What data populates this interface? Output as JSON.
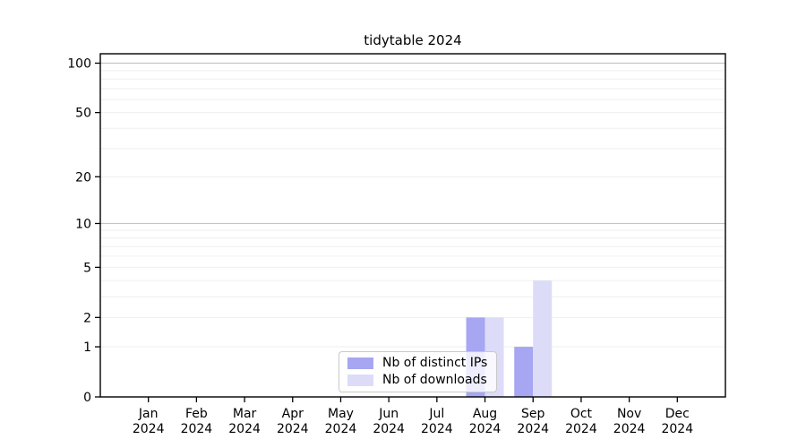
{
  "title": "tidytable 2024",
  "chart_data": {
    "type": "bar",
    "title": "tidytable 2024",
    "categories": [
      "Jan",
      "Feb",
      "Mar",
      "Apr",
      "May",
      "Jun",
      "Jul",
      "Aug",
      "Sep",
      "Oct",
      "Nov",
      "Dec"
    ],
    "year_label": "2024",
    "series": [
      {
        "name": "Nb of distinct IPs",
        "color": "#a6a6f2",
        "values": [
          0,
          0,
          0,
          0,
          0,
          0,
          0,
          2,
          1,
          0,
          0,
          0
        ]
      },
      {
        "name": "Nb of downloads",
        "color": "#dcdcf9",
        "values": [
          0,
          0,
          0,
          0,
          0,
          0,
          0,
          2,
          4,
          0,
          0,
          0
        ]
      }
    ],
    "yscale": "log1p",
    "ylim": [
      0,
      114
    ],
    "y_ticks": [
      0,
      1,
      2,
      5,
      10,
      20,
      50,
      100
    ],
    "grid_minor": [
      1,
      2,
      3,
      4,
      5,
      6,
      7,
      8,
      9,
      20,
      30,
      40,
      50,
      60,
      70,
      80,
      90
    ],
    "grid_major": [
      10,
      100
    ],
    "grid": "on",
    "legend_position": "bottom-center",
    "xlabel": "",
    "ylabel": ""
  },
  "colors": {
    "axis": "#000000",
    "major_grid": "#c4c4c4",
    "minor_grid": "#efefef",
    "legend_border": "#c9c9c9"
  }
}
